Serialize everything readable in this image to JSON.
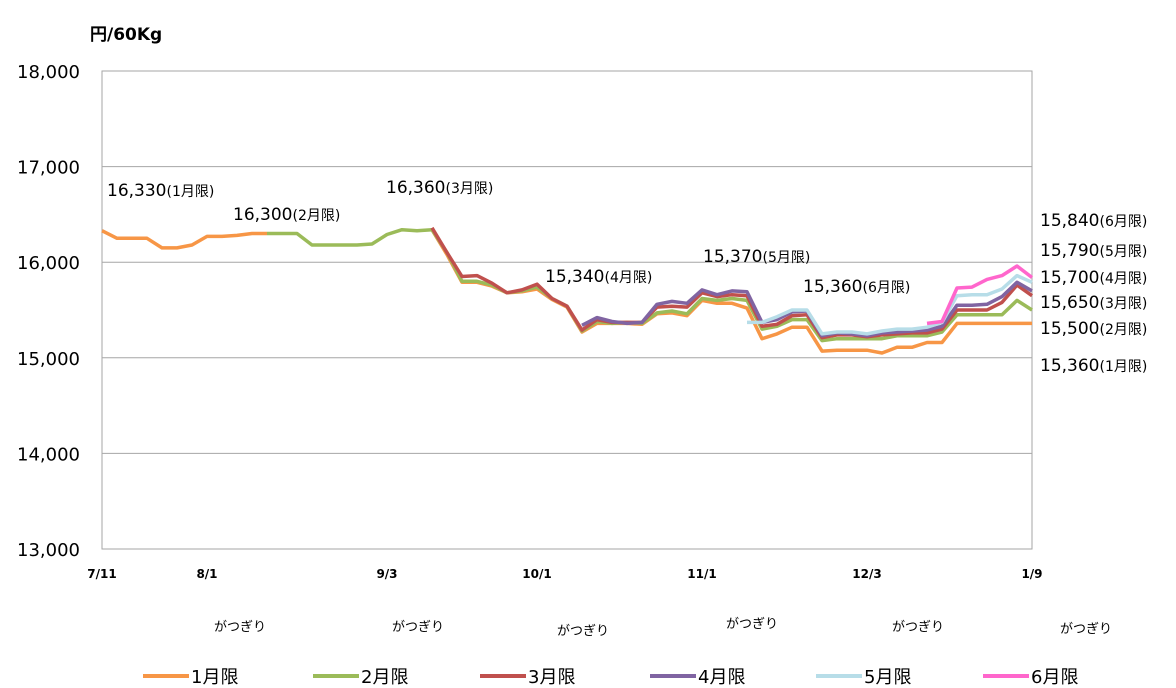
{
  "chart_data": {
    "type": "line",
    "y_label": "円/60Kg",
    "categories": [
      "7/11",
      null,
      null,
      null,
      null,
      null,
      null,
      "8/1",
      null,
      null,
      null,
      null,
      null,
      null,
      null,
      null,
      null,
      null,
      null,
      "9/3",
      null,
      null,
      null,
      null,
      null,
      null,
      null,
      null,
      null,
      "10/1",
      null,
      null,
      null,
      null,
      null,
      null,
      null,
      null,
      null,
      null,
      "11/1",
      null,
      null,
      null,
      null,
      null,
      null,
      null,
      null,
      null,
      null,
      "12/3",
      null,
      null,
      null,
      null,
      null,
      null,
      null,
      null,
      null,
      null,
      "1/9"
    ],
    "ylim": [
      13000,
      18000
    ],
    "yticks": [
      {
        "value": 13000,
        "label": "13,000"
      },
      {
        "value": 14000,
        "label": "14,000"
      },
      {
        "value": 15000,
        "label": "15,000"
      },
      {
        "value": 16000,
        "label": "16,000"
      },
      {
        "value": 17000,
        "label": "17,000"
      },
      {
        "value": 18000,
        "label": "18,000"
      }
    ],
    "grid": true,
    "series": [
      {
        "name": "1月限",
        "color": "#f79646",
        "values": [
          16330,
          16250,
          16250,
          16250,
          16150,
          16150,
          16180,
          16270,
          16270,
          16280,
          16300,
          16300,
          null,
          null,
          null,
          null,
          null,
          null,
          null,
          null,
          null,
          null,
          16340,
          16080,
          15790,
          15790,
          15750,
          15680,
          15690,
          15720,
          15610,
          15530,
          15270,
          15360,
          15360,
          15360,
          15350,
          15460,
          15470,
          15440,
          15600,
          15570,
          15570,
          15520,
          15200,
          15250,
          15320,
          15320,
          15070,
          15080,
          15080,
          15080,
          15050,
          15110,
          15110,
          15160,
          15160,
          15360,
          15360,
          15360,
          15360,
          15360,
          15360
        ]
      },
      {
        "name": "2月限",
        "color": "#9bbb59",
        "values": [
          null,
          null,
          null,
          null,
          null,
          null,
          null,
          null,
          null,
          null,
          null,
          16300,
          16300,
          16300,
          16180,
          16180,
          16180,
          16180,
          16190,
          16290,
          16340,
          16330,
          16340,
          16100,
          15800,
          15800,
          15760,
          15680,
          15700,
          15740,
          15620,
          15540,
          15280,
          15380,
          15360,
          15370,
          15360,
          15470,
          15490,
          15460,
          15620,
          15600,
          15620,
          15600,
          15300,
          15330,
          15400,
          15400,
          15180,
          15200,
          15200,
          15200,
          15200,
          15230,
          15230,
          15230,
          15270,
          15450,
          15450,
          15450,
          15450,
          15600,
          15500
        ]
      },
      {
        "name": "3月限",
        "color": "#c0504d",
        "values": [
          null,
          null,
          null,
          null,
          null,
          null,
          null,
          null,
          null,
          null,
          null,
          null,
          null,
          null,
          null,
          null,
          null,
          null,
          null,
          null,
          null,
          null,
          16360,
          16100,
          15850,
          15860,
          15780,
          15680,
          15710,
          15770,
          15620,
          15540,
          15290,
          15400,
          15370,
          15370,
          15370,
          15530,
          15540,
          15530,
          15680,
          15640,
          15660,
          15650,
          15330,
          15350,
          15440,
          15450,
          15210,
          15240,
          15240,
          15220,
          15240,
          15250,
          15260,
          15260,
          15300,
          15500,
          15500,
          15500,
          15580,
          15760,
          15650
        ]
      },
      {
        "name": "4月限",
        "color": "#8064a2",
        "values": [
          null,
          null,
          null,
          null,
          null,
          null,
          null,
          null,
          null,
          null,
          null,
          null,
          null,
          null,
          null,
          null,
          null,
          null,
          null,
          null,
          null,
          null,
          null,
          null,
          null,
          null,
          null,
          null,
          null,
          null,
          null,
          null,
          15340,
          15420,
          15380,
          15360,
          15370,
          15560,
          15590,
          15570,
          15710,
          15660,
          15700,
          15690,
          15370,
          15400,
          15480,
          15490,
          15230,
          15260,
          15250,
          15230,
          15260,
          15270,
          15280,
          15290,
          15330,
          15550,
          15550,
          15560,
          15640,
          15790,
          15700
        ]
      },
      {
        "name": "5月限",
        "color": "#b7dde8",
        "values": [
          null,
          null,
          null,
          null,
          null,
          null,
          null,
          null,
          null,
          null,
          null,
          null,
          null,
          null,
          null,
          null,
          null,
          null,
          null,
          null,
          null,
          null,
          null,
          null,
          null,
          null,
          null,
          null,
          null,
          null,
          null,
          null,
          null,
          null,
          null,
          null,
          null,
          null,
          null,
          null,
          null,
          null,
          null,
          15370,
          15370,
          15430,
          15500,
          15500,
          15250,
          15270,
          15270,
          15250,
          15280,
          15300,
          15300,
          15320,
          15370,
          15650,
          15660,
          15660,
          15720,
          15860,
          15790
        ]
      },
      {
        "name": "6月限",
        "color": "#ff66cc",
        "values": [
          null,
          null,
          null,
          null,
          null,
          null,
          null,
          null,
          null,
          null,
          null,
          null,
          null,
          null,
          null,
          null,
          null,
          null,
          null,
          null,
          null,
          null,
          null,
          null,
          null,
          null,
          null,
          null,
          null,
          null,
          null,
          null,
          null,
          null,
          null,
          null,
          null,
          null,
          null,
          null,
          null,
          null,
          null,
          null,
          null,
          null,
          null,
          null,
          null,
          null,
          null,
          null,
          null,
          null,
          null,
          15360,
          15380,
          15730,
          15740,
          15820,
          15860,
          15960,
          15840
        ]
      }
    ],
    "annotations": [
      {
        "value": "16,330",
        "contract": "(1月限)"
      },
      {
        "value": "16,300",
        "contract": "(2月限)"
      },
      {
        "value": "16,360",
        "contract": "(3月限)"
      },
      {
        "value": "15,340",
        "contract": "(4月限)"
      },
      {
        "value": "15,370",
        "contract": "(5月限)"
      },
      {
        "value": "15,360",
        "contract": "(6月限)"
      }
    ],
    "end_labels": [
      {
        "value": "15,840",
        "contract": "(6月限)"
      },
      {
        "value": "15,790",
        "contract": "(5月限)"
      },
      {
        "value": "15,700",
        "contract": "(4月限)"
      },
      {
        "value": "15,650",
        "contract": "(3月限)"
      },
      {
        "value": "15,500",
        "contract": "(2月限)"
      },
      {
        "value": "15,360",
        "contract": "(1月限)"
      }
    ],
    "x_notes": [
      "がつぎり",
      "がつぎり",
      "がつぎり",
      "がつぎり",
      "がつぎり",
      "がつぎり"
    ]
  }
}
